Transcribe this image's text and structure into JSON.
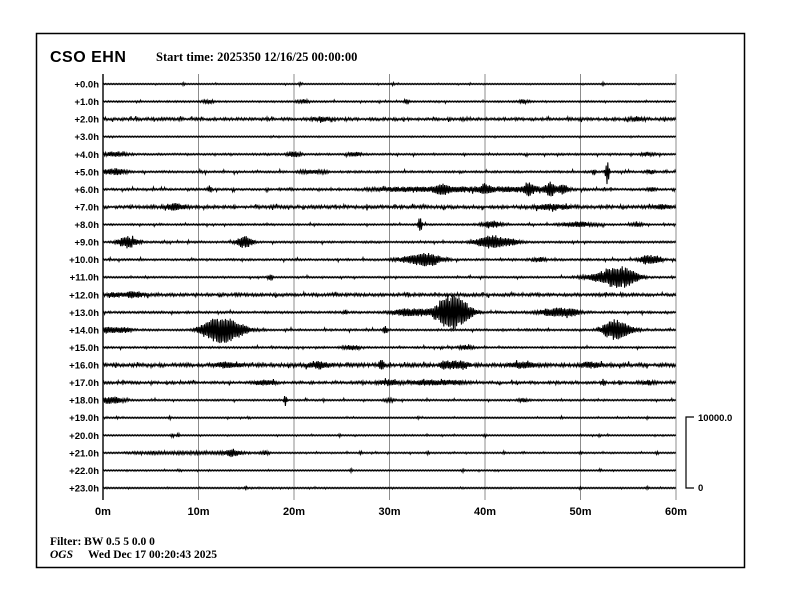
{
  "page": {
    "background": "#ffffff",
    "border_color": "#000000"
  },
  "header": {
    "station": "CSO EHN",
    "start_time": "Start time: 2025350 12/16/25 00:00:00"
  },
  "footer": {
    "filter": "Filter: BW 0.5 5 0.0 0",
    "agency": "OGS",
    "timestamp": "Wed Dec 17 00:20:43 2025"
  },
  "scale_bar": {
    "top_label": "10000.0",
    "bottom_label": "0"
  },
  "colors": {
    "trace": "#000000",
    "grid": "#8c8c8c",
    "axis": "#000000"
  },
  "chart_data": {
    "type": "line",
    "subtype": "helicorder-seismogram",
    "title": "CSO EHN",
    "start_time": "2025350 12/16/25 00:00:00",
    "x_ticks": [
      "0m",
      "10m",
      "20m",
      "30m",
      "40m",
      "50m",
      "60m"
    ],
    "x_range_minutes": [
      0,
      60
    ],
    "minutes_per_line": 60,
    "amplitude_scale": {
      "top": 10000.0,
      "bottom": 0
    },
    "grid": true,
    "legend": false,
    "event_format": "[minute, amplitude, halfwidth_min, type: s=spike b=burst n=noise-band]",
    "rows": [
      {
        "label": "+0.0h",
        "noise": 0.5,
        "events": [
          [
            8.4,
            2,
            0.2,
            "s"
          ],
          [
            20.6,
            1.8,
            0.2,
            "s"
          ],
          [
            30.4,
            1.8,
            0.2,
            "s"
          ],
          [
            52.4,
            1.8,
            0.2,
            "s"
          ]
        ]
      },
      {
        "label": "+1.0h",
        "noise": 0.75,
        "events": [
          [
            11,
            1.8,
            0.4,
            "b"
          ],
          [
            21,
            2,
            0.4,
            "b"
          ],
          [
            31.8,
            3,
            0.3,
            "s"
          ],
          [
            44,
            1.6,
            0.4,
            "b"
          ]
        ]
      },
      {
        "label": "+2.0h",
        "noise": 1.35,
        "events": [
          [
            23,
            2,
            0.6,
            "b"
          ],
          [
            56,
            2,
            0.5,
            "b"
          ]
        ]
      },
      {
        "label": "+3.0h",
        "noise": 0.45,
        "events": []
      },
      {
        "label": "+4.0h",
        "noise": 0.85,
        "events": [
          [
            1.2,
            2.2,
            0.9,
            "b"
          ],
          [
            20,
            2.5,
            0.5,
            "b"
          ],
          [
            26.3,
            2.2,
            0.5,
            "b"
          ],
          [
            57,
            1.8,
            0.5,
            "b"
          ]
        ]
      },
      {
        "label": "+5.0h",
        "noise": 0.95,
        "events": [
          [
            1.2,
            3,
            0.9,
            "b"
          ],
          [
            22,
            1.5,
            1.5,
            "n"
          ],
          [
            51.4,
            4,
            0.2,
            "s"
          ],
          [
            52.8,
            13,
            0.25,
            "s"
          ],
          [
            57.3,
            2,
            0.3,
            "b"
          ]
        ]
      },
      {
        "label": "+6.0h",
        "noise": 1.0,
        "events": [
          [
            11.2,
            4,
            0.25,
            "s"
          ],
          [
            38,
            2.2,
            10,
            "n"
          ],
          [
            35.5,
            3.5,
            0.5,
            "b"
          ],
          [
            40,
            4,
            0.4,
            "b"
          ],
          [
            44.6,
            5,
            0.4,
            "b"
          ],
          [
            46.8,
            6,
            0.4,
            "b"
          ],
          [
            48.2,
            4.5,
            0.35,
            "b"
          ],
          [
            57.5,
            2,
            0.3,
            "b"
          ]
        ]
      },
      {
        "label": "+7.0h",
        "noise": 1.5,
        "events": [
          [
            7.5,
            3,
            0.8,
            "b"
          ],
          [
            47,
            2.5,
            1.2,
            "b"
          ],
          [
            58.5,
            2,
            0.6,
            "b"
          ]
        ]
      },
      {
        "label": "+8.0h",
        "noise": 0.8,
        "events": [
          [
            33.2,
            9.5,
            0.25,
            "s"
          ],
          [
            40.6,
            3.5,
            0.7,
            "b"
          ],
          [
            49.8,
            2.5,
            1.2,
            "b"
          ],
          [
            56,
            2,
            0.4,
            "b"
          ]
        ]
      },
      {
        "label": "+9.0h",
        "noise": 0.9,
        "events": [
          [
            2.6,
            6,
            0.7,
            "b"
          ],
          [
            14.8,
            6,
            0.6,
            "b"
          ],
          [
            39.9,
            4,
            0.8,
            "b"
          ],
          [
            41.3,
            5,
            0.9,
            "b"
          ],
          [
            43,
            2,
            0.6,
            "b"
          ]
        ]
      },
      {
        "label": "+10.0h",
        "noise": 0.9,
        "events": [
          [
            32.3,
            3,
            1.2,
            "b"
          ],
          [
            34.1,
            6,
            1,
            "b"
          ],
          [
            45.6,
            2,
            0.5,
            "b"
          ],
          [
            56.8,
            4,
            0.5,
            "b"
          ],
          [
            57.9,
            3.5,
            0.5,
            "b"
          ]
        ]
      },
      {
        "label": "+11.0h",
        "noise": 0.8,
        "events": [
          [
            17.5,
            4,
            0.3,
            "s"
          ],
          [
            52.2,
            3,
            1.5,
            "b"
          ],
          [
            53.9,
            10,
            1.1,
            "b"
          ],
          [
            55.4,
            3,
            0.8,
            "b"
          ]
        ]
      },
      {
        "label": "+12.0h",
        "noise": 1.4,
        "events": [
          [
            1.2,
            2,
            0.5,
            "b"
          ],
          [
            3.2,
            3,
            0.7,
            "b"
          ]
        ]
      },
      {
        "label": "+13.0h",
        "noise": 1.0,
        "events": [
          [
            25.4,
            2,
            0.3,
            "s"
          ],
          [
            31.5,
            3.5,
            0.9,
            "b"
          ],
          [
            33.3,
            3,
            0.7,
            "b"
          ],
          [
            35.6,
            6,
            0.8,
            "b"
          ],
          [
            36.6,
            15,
            1,
            "b"
          ],
          [
            37.8,
            5,
            0.8,
            "b"
          ],
          [
            47.2,
            3.5,
            1.2,
            "b"
          ],
          [
            48.8,
            3,
            0.8,
            "b"
          ]
        ]
      },
      {
        "label": "+14.0h",
        "noise": 0.9,
        "events": [
          [
            0.6,
            3,
            0.7,
            "b"
          ],
          [
            2.2,
            2.5,
            0.5,
            "b"
          ],
          [
            10.8,
            4,
            0.7,
            "b"
          ],
          [
            12.4,
            12,
            1.1,
            "b"
          ],
          [
            13.8,
            5,
            1.2,
            "b"
          ],
          [
            29.5,
            5,
            0.25,
            "s"
          ],
          [
            53.4,
            9,
            0.8,
            "b"
          ],
          [
            54.6,
            4,
            0.9,
            "b"
          ]
        ]
      },
      {
        "label": "+15.0h",
        "noise": 0.85,
        "events": [
          [
            26,
            2,
            0.6,
            "b"
          ],
          [
            38,
            2,
            0.5,
            "b"
          ]
        ]
      },
      {
        "label": "+16.0h",
        "noise": 1.7,
        "events": [
          [
            13,
            2.5,
            0.8,
            "b"
          ],
          [
            22.6,
            3.5,
            0.7,
            "b"
          ],
          [
            29.2,
            6.5,
            0.35,
            "s"
          ],
          [
            36.8,
            3.5,
            1.5,
            "n"
          ],
          [
            44,
            3,
            0.8,
            "b"
          ],
          [
            51,
            2.5,
            0.7,
            "b"
          ]
        ]
      },
      {
        "label": "+17.0h",
        "noise": 1.25,
        "events": [
          [
            17,
            2.5,
            0.8,
            "b"
          ],
          [
            30,
            2.5,
            0.8,
            "b"
          ],
          [
            35,
            2,
            3,
            "n"
          ],
          [
            52.4,
            3.5,
            0.3,
            "s"
          ],
          [
            57,
            2,
            0.5,
            "b"
          ]
        ]
      },
      {
        "label": "+18.0h",
        "noise": 0.8,
        "events": [
          [
            0.8,
            3.5,
            0.9,
            "b"
          ],
          [
            19.1,
            7.5,
            0.2,
            "s"
          ],
          [
            30,
            1.5,
            0.4,
            "b"
          ],
          [
            44,
            1.5,
            0.4,
            "b"
          ]
        ]
      },
      {
        "label": "+19.0h",
        "noise": 0.55,
        "events": [
          [
            1.5,
            1.8,
            0.15,
            "s"
          ],
          [
            7,
            1.6,
            0.15,
            "s"
          ],
          [
            33,
            1.6,
            0.15,
            "s"
          ],
          [
            48,
            1.6,
            0.15,
            "s"
          ],
          [
            57,
            1.5,
            0.15,
            "s"
          ]
        ]
      },
      {
        "label": "+20.0h",
        "noise": 0.55,
        "events": [
          [
            7.3,
            2.2,
            0.2,
            "s"
          ],
          [
            7.9,
            2,
            0.2,
            "s"
          ],
          [
            24.8,
            1.8,
            0.2,
            "s"
          ],
          [
            40,
            1.5,
            0.2,
            "s"
          ],
          [
            52,
            1.5,
            0.2,
            "s"
          ]
        ]
      },
      {
        "label": "+21.0h",
        "noise": 0.65,
        "events": [
          [
            9,
            0.9,
            7,
            "n"
          ],
          [
            13.5,
            3,
            0.5,
            "b"
          ],
          [
            17,
            1.8,
            0.3,
            "b"
          ],
          [
            27,
            1.5,
            0.2,
            "s"
          ],
          [
            34,
            1.5,
            0.2,
            "s"
          ],
          [
            42,
            1.5,
            0.2,
            "s"
          ],
          [
            50,
            1.5,
            0.2,
            "s"
          ],
          [
            58,
            1.5,
            0.2,
            "s"
          ]
        ]
      },
      {
        "label": "+22.0h",
        "noise": 0.5,
        "events": [
          [
            8,
            1.5,
            0.2,
            "s"
          ],
          [
            26,
            1.9,
            0.2,
            "s"
          ],
          [
            37.7,
            1.9,
            0.2,
            "s"
          ],
          [
            52,
            1.4,
            0.2,
            "s"
          ]
        ]
      },
      {
        "label": "+23.0h",
        "noise": 0.5,
        "events": [
          [
            15,
            1.4,
            0.2,
            "s"
          ],
          [
            50,
            1.8,
            0.2,
            "s"
          ],
          [
            57,
            1.5,
            0.2,
            "s"
          ]
        ]
      }
    ]
  }
}
